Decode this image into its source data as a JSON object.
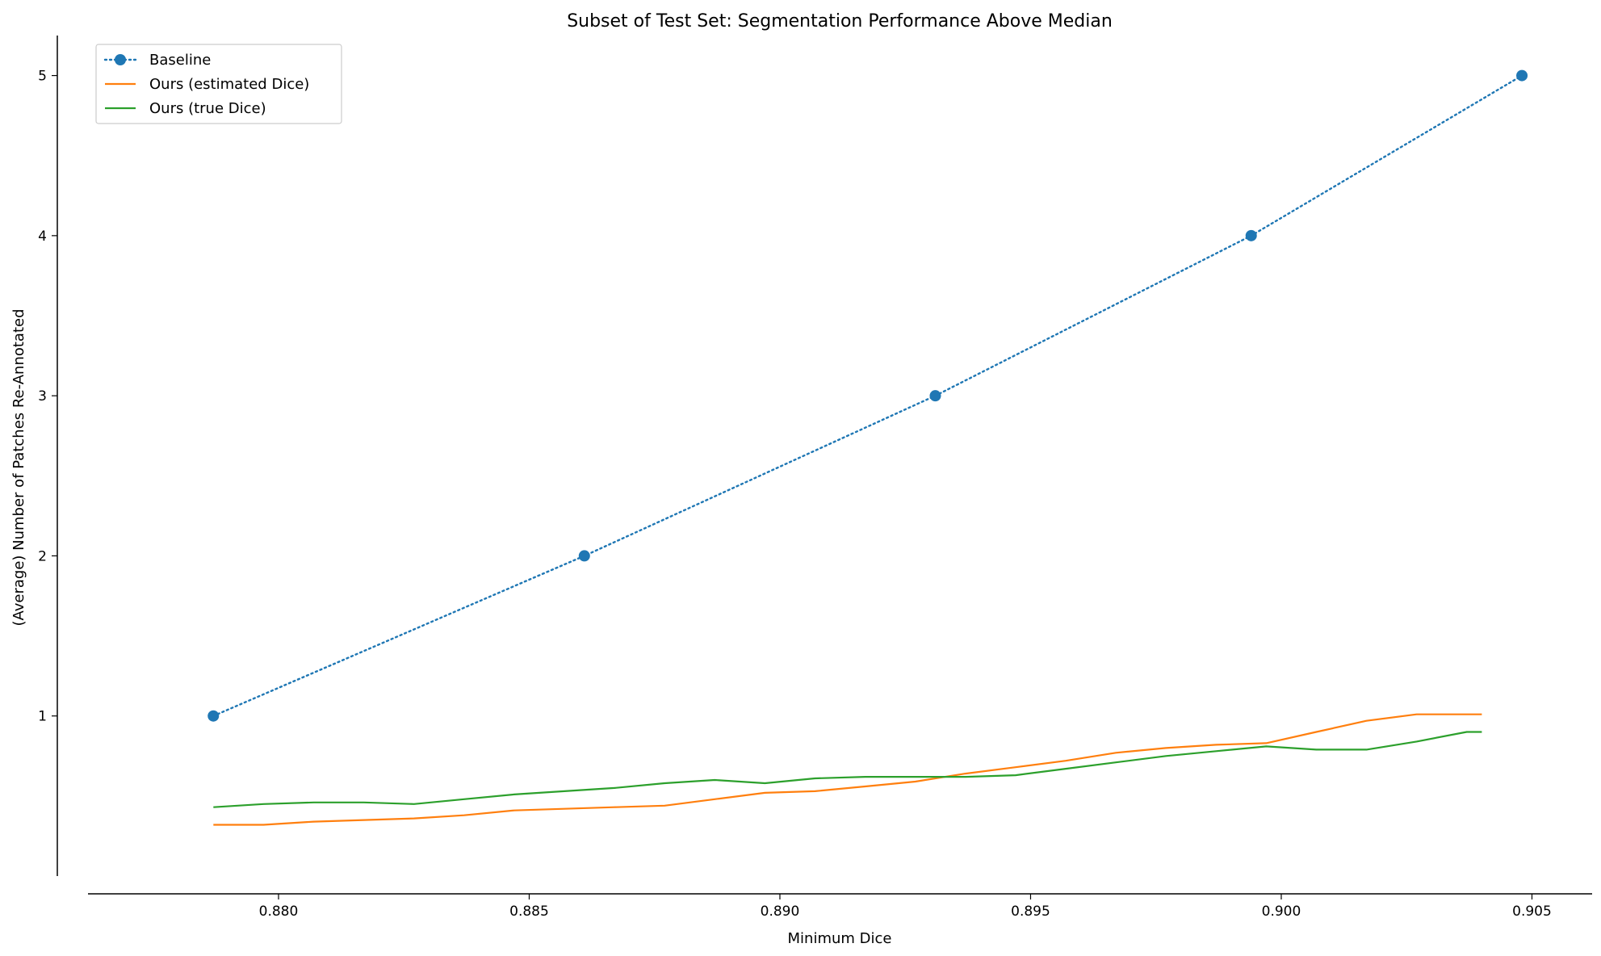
{
  "chart_data": {
    "type": "line",
    "title": "Subset of Test Set: Segmentation Performance Above Median",
    "xlabel": "Minimum Dice",
    "ylabel": "(Average) Number of Patches Re-Annotated",
    "xlim": [
      0.8762,
      0.9062
    ],
    "ylim": [
      0.0,
      5.25
    ],
    "x_ticks": [
      0.88,
      0.885,
      0.89,
      0.895,
      0.9,
      0.905
    ],
    "x_tick_labels": [
      "0.880",
      "0.885",
      "0.890",
      "0.895",
      "0.900",
      "0.905"
    ],
    "y_ticks": [
      1,
      2,
      3,
      4,
      5
    ],
    "y_tick_labels": [
      "1",
      "2",
      "3",
      "4",
      "5"
    ],
    "grid": false,
    "legend_position": "upper-left",
    "series": [
      {
        "name": "Baseline",
        "color": "#1f77b4",
        "style": "dotted-with-markers",
        "x": [
          0.8787,
          0.8861,
          0.8931,
          0.8994,
          0.9048
        ],
        "y": [
          1,
          2,
          3,
          4,
          5
        ]
      },
      {
        "name": "Ours (estimated Dice)",
        "color": "#ff7f0e",
        "style": "solid",
        "x": [
          0.8787,
          0.8797,
          0.8807,
          0.8817,
          0.8827,
          0.8837,
          0.8847,
          0.8857,
          0.8867,
          0.8877,
          0.8887,
          0.8897,
          0.8907,
          0.8917,
          0.8927,
          0.8937,
          0.8947,
          0.8957,
          0.8967,
          0.8977,
          0.8987,
          0.8997,
          0.9007,
          0.9017,
          0.9027,
          0.9037,
          0.904
        ],
        "y": [
          0.32,
          0.32,
          0.34,
          0.35,
          0.36,
          0.38,
          0.41,
          0.42,
          0.43,
          0.44,
          0.48,
          0.52,
          0.53,
          0.56,
          0.59,
          0.64,
          0.68,
          0.72,
          0.77,
          0.8,
          0.82,
          0.83,
          0.9,
          0.97,
          1.01,
          1.01,
          1.01
        ]
      },
      {
        "name": "Ours (true Dice)",
        "color": "#2ca02c",
        "style": "solid",
        "x": [
          0.8787,
          0.8797,
          0.8807,
          0.8817,
          0.8827,
          0.8837,
          0.8847,
          0.8857,
          0.8867,
          0.8877,
          0.8887,
          0.8897,
          0.8907,
          0.8917,
          0.8927,
          0.8937,
          0.8947,
          0.8957,
          0.8967,
          0.8977,
          0.8987,
          0.8997,
          0.9007,
          0.9017,
          0.9027,
          0.9037,
          0.904
        ],
        "y": [
          0.43,
          0.45,
          0.46,
          0.46,
          0.45,
          0.48,
          0.51,
          0.53,
          0.55,
          0.58,
          0.6,
          0.58,
          0.61,
          0.62,
          0.62,
          0.62,
          0.63,
          0.67,
          0.71,
          0.75,
          0.78,
          0.81,
          0.79,
          0.79,
          0.84,
          0.9,
          0.9
        ]
      }
    ]
  }
}
